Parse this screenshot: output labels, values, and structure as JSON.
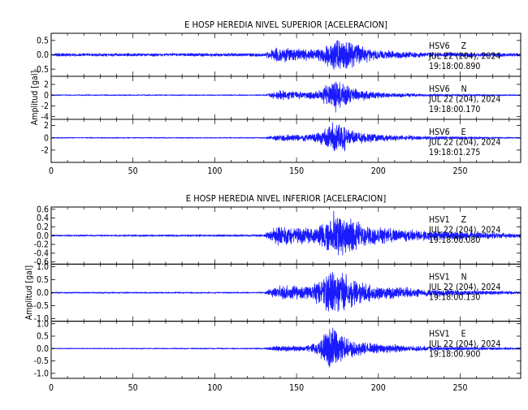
{
  "colors": {
    "trace": "#1a1aff",
    "axis": "#000000",
    "background": "#ffffff"
  },
  "chart_data": [
    {
      "type": "line",
      "title": "E HOSP HEREDIA NIVEL SUPERIOR [ACELERACION]",
      "ylabel": "Amplitud [gal]",
      "xlabel": "",
      "xlim": [
        0,
        287
      ],
      "xticks": [
        0,
        50,
        100,
        150,
        200,
        250
      ],
      "channels": [
        {
          "station": "HSV6",
          "component": "Z",
          "date": "JUL 22 (204), 2024",
          "time": "19:18:00.890",
          "ylim": [
            -0.75,
            0.75
          ],
          "yticks": [
            -0.5,
            0.0,
            0.5
          ],
          "ytick_labels": [
            "-0.5",
            "0.0",
            "0.5"
          ],
          "envelope": [
            [
              0,
              0.06
            ],
            [
              130,
              0.06
            ],
            [
              138,
              0.35
            ],
            [
              150,
              0.25
            ],
            [
              163,
              0.2
            ],
            [
              170,
              0.55
            ],
            [
              176,
              0.7
            ],
            [
              181,
              0.6
            ],
            [
              190,
              0.3
            ],
            [
              205,
              0.15
            ],
            [
              225,
              0.1
            ],
            [
              287,
              0.06
            ]
          ]
        },
        {
          "station": "HSV6",
          "component": "N",
          "date": "JUL 22 (204), 2024",
          "time": "19:18:00.170",
          "ylim": [
            -4.5,
            3.5
          ],
          "yticks": [
            -4,
            -2,
            0,
            2
          ],
          "ytick_labels": [
            "-4",
            "-2",
            "0",
            "2"
          ],
          "envelope": [
            [
              0,
              0.12
            ],
            [
              130,
              0.12
            ],
            [
              140,
              1.0
            ],
            [
              155,
              0.7
            ],
            [
              164,
              1.0
            ],
            [
              172,
              3.2
            ],
            [
              176,
              3.0
            ],
            [
              182,
              2.0
            ],
            [
              190,
              1.0
            ],
            [
              205,
              0.5
            ],
            [
              225,
              0.3
            ],
            [
              287,
              0.12
            ]
          ]
        },
        {
          "station": "HSV6",
          "component": "E",
          "date": "JUL 22 (204), 2024",
          "time": "19:18:01.275",
          "ylim": [
            -4.0,
            3.0
          ],
          "yticks": [
            -2,
            0,
            2
          ],
          "ytick_labels": [
            "-2",
            "0",
            "2"
          ],
          "envelope": [
            [
              0,
              0.1
            ],
            [
              130,
              0.1
            ],
            [
              140,
              0.6
            ],
            [
              155,
              0.6
            ],
            [
              165,
              1.2
            ],
            [
              172,
              2.6
            ],
            [
              178,
              2.4
            ],
            [
              185,
              1.2
            ],
            [
              200,
              0.6
            ],
            [
              230,
              0.3
            ],
            [
              287,
              0.1
            ]
          ]
        }
      ]
    },
    {
      "type": "line",
      "title": "E HOSP HEREDIA NIVEL INFERIOR [ACELERACION]",
      "ylabel": "Amplitud [gal]",
      "xlabel": "",
      "xlim": [
        0,
        287
      ],
      "xticks": [
        0,
        50,
        100,
        150,
        200,
        250
      ],
      "channels": [
        {
          "station": "HSV1",
          "component": "Z",
          "date": "JUL 22 (204), 2024",
          "time": "19:18:00.080",
          "ylim": [
            -0.65,
            0.65
          ],
          "yticks": [
            -0.6,
            -0.4,
            -0.2,
            0.0,
            0.2,
            0.4,
            0.6
          ],
          "ytick_labels": [
            "-0.6",
            "-0.4",
            "-0.2",
            "0.0",
            "0.2",
            "0.4",
            "0.6"
          ],
          "envelope": [
            [
              0,
              0.02
            ],
            [
              130,
              0.03
            ],
            [
              138,
              0.25
            ],
            [
              150,
              0.2
            ],
            [
              162,
              0.2
            ],
            [
              170,
              0.45
            ],
            [
              176,
              0.6
            ],
            [
              182,
              0.45
            ],
            [
              195,
              0.25
            ],
            [
              215,
              0.15
            ],
            [
              250,
              0.1
            ],
            [
              287,
              0.05
            ]
          ]
        },
        {
          "station": "HSV1",
          "component": "N",
          "date": "JUL 22 (204), 2024",
          "time": "19:18:00.130",
          "ylim": [
            -1.1,
            1.1
          ],
          "yticks": [
            -1.0,
            -0.5,
            0.0,
            0.5,
            1.0
          ],
          "ytick_labels": [
            "-1.0",
            "-0.5",
            "0.0",
            "0.5",
            "1.0"
          ],
          "envelope": [
            [
              0,
              0.03
            ],
            [
              130,
              0.03
            ],
            [
              140,
              0.3
            ],
            [
              155,
              0.25
            ],
            [
              165,
              0.5
            ],
            [
              172,
              1.0
            ],
            [
              177,
              0.95
            ],
            [
              185,
              0.55
            ],
            [
              200,
              0.3
            ],
            [
              230,
              0.15
            ],
            [
              287,
              0.05
            ]
          ]
        },
        {
          "station": "HSV1",
          "component": "E",
          "date": "JUL 22 (204), 2024",
          "time": "19:18:00.900",
          "ylim": [
            -1.2,
            1.1
          ],
          "yticks": [
            -1.0,
            -0.5,
            0.0,
            0.5,
            1.0
          ],
          "ytick_labels": [
            "-1.0",
            "-0.5",
            "0.0",
            "0.5",
            "1.0"
          ],
          "envelope": [
            [
              0,
              0.02
            ],
            [
              130,
              0.03
            ],
            [
              138,
              0.12
            ],
            [
              155,
              0.12
            ],
            [
              163,
              0.25
            ],
            [
              170,
              1.0
            ],
            [
              175,
              0.8
            ],
            [
              182,
              0.4
            ],
            [
              200,
              0.2
            ],
            [
              230,
              0.1
            ],
            [
              287,
              0.04
            ]
          ]
        }
      ]
    }
  ]
}
